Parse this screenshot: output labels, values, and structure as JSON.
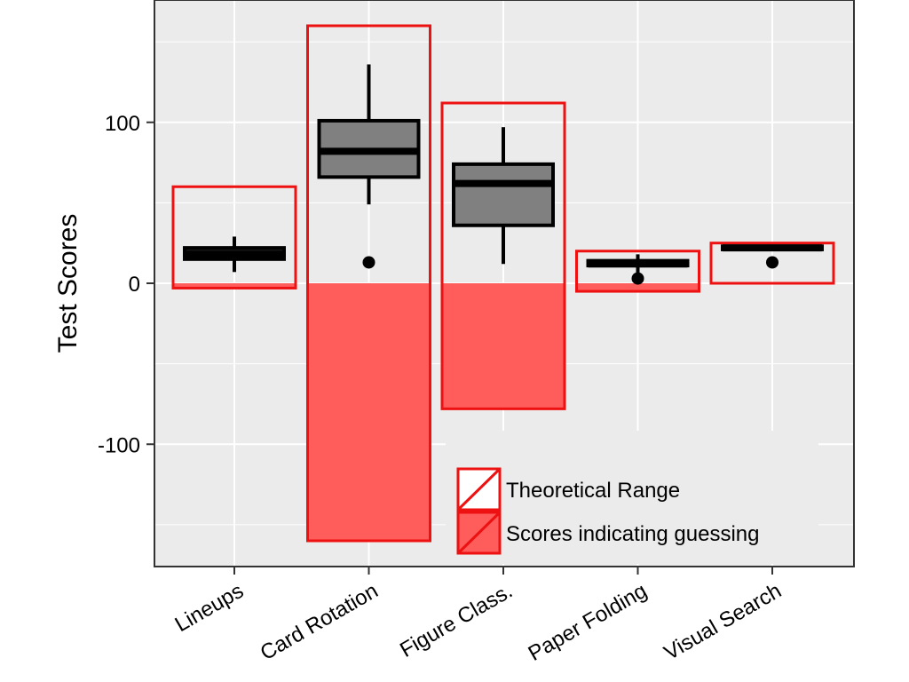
{
  "chart_data": {
    "type": "boxplot",
    "title": "",
    "xlabel": "",
    "ylabel": "Test Scores",
    "ylim": [
      -176,
      176
    ],
    "yticks": [
      -100,
      0,
      100
    ],
    "grid": true,
    "legend_position": "bottom-right",
    "categories": [
      "Lineups",
      "Card Rotation",
      "Figure Class.",
      "Paper Folding",
      "Visual Search"
    ],
    "colors": {
      "range_outline": "#ee1111",
      "guessing_fill": "#ff5c5c",
      "box_fill_dark": "#1a1a1a",
      "box_fill_gray": "#808080",
      "panel_background": "#ebebeb",
      "grid": "#ffffff"
    },
    "theoretical_range": [
      {
        "category": "Lineups",
        "min": -3,
        "max": 60
      },
      {
        "category": "Card Rotation",
        "min": -160,
        "max": 160
      },
      {
        "category": "Figure Class.",
        "min": -78,
        "max": 112
      },
      {
        "category": "Paper Folding",
        "min": -5,
        "max": 20
      },
      {
        "category": "Visual Search",
        "min": 0,
        "max": 25
      }
    ],
    "guessing_region": [
      {
        "category": "Lineups",
        "min": -3,
        "max": 0
      },
      {
        "category": "Card Rotation",
        "min": -160,
        "max": 0
      },
      {
        "category": "Figure Class.",
        "min": -78,
        "max": 0
      },
      {
        "category": "Paper Folding",
        "min": -5,
        "max": 0
      },
      {
        "category": "Visual Search",
        "min": 0,
        "max": 0
      }
    ],
    "boxes": [
      {
        "category": "Lineups",
        "whisker_low": 7,
        "q1": 15,
        "median": 18,
        "q3": 22,
        "whisker_high": 29,
        "outliers": [],
        "fill": "dark"
      },
      {
        "category": "Card Rotation",
        "whisker_low": 49,
        "q1": 66,
        "median": 82,
        "q3": 101,
        "whisker_high": 136,
        "outliers": [
          13
        ],
        "fill": "gray"
      },
      {
        "category": "Figure Class.",
        "whisker_low": 12,
        "q1": 36,
        "median": 62,
        "q3": 74,
        "whisker_high": 97,
        "outliers": [],
        "fill": "gray"
      },
      {
        "category": "Paper Folding",
        "whisker_low": 6,
        "q1": 11,
        "median": 12,
        "q3": 14,
        "whisker_high": 18,
        "outliers": [
          3
        ],
        "fill": "dark"
      },
      {
        "category": "Visual Search",
        "whisker_low": 21,
        "q1": 21,
        "median": 22,
        "q3": 23,
        "whisker_high": 23,
        "outliers": [
          13
        ],
        "fill": "dark"
      }
    ],
    "legend": [
      {
        "label": "Theoretical Range",
        "key": "theoretical_range"
      },
      {
        "label": "Scores indicating guessing",
        "key": "guessing"
      }
    ]
  }
}
